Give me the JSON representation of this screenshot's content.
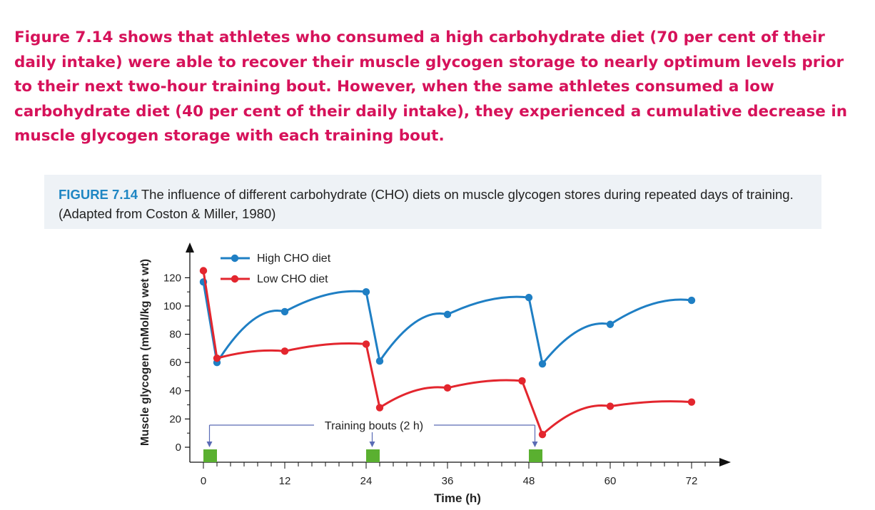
{
  "intro_text": "Figure 7.14 shows that athletes who consumed a high carbohydrate diet (70 per cent of their daily intake) were able to recover their muscle glycogen storage to nearly optimum levels prior to their next two-hour training bout. However, when the same athletes consumed a low carbohydrate diet (40 per cent of their daily intake), they experienced a cumulative decrease in muscle glycogen storage with each training bout.",
  "caption": {
    "label": "FIGURE 7.14",
    "text": " The influence of different carbohydrate (CHO) diets on muscle glycogen stores during repeated days of training. (Adapted from Coston & Miller, 1980)"
  },
  "colors": {
    "intro": "#d6125a",
    "caption_label": "#1f86c3",
    "high_cho": "#1f7fc4",
    "low_cho": "#e3262e",
    "training_bar": "#5ab030",
    "annotation_line": "#5a6bb5"
  },
  "chart_data": {
    "type": "line",
    "xlabel": "Time (h)",
    "ylabel": "Muscle glycogen (mMol/kg wet wt)",
    "xlim": [
      0,
      75
    ],
    "ylim": [
      0,
      130
    ],
    "xticks": [
      0,
      12,
      24,
      36,
      48,
      60,
      72
    ],
    "yticks": [
      0,
      20,
      40,
      60,
      80,
      100,
      120
    ],
    "legend_position": "top-left",
    "series": [
      {
        "name": "High CHO diet",
        "color": "#1f7fc4",
        "points": [
          [
            0,
            117
          ],
          [
            2,
            60
          ],
          [
            12,
            96
          ],
          [
            24,
            110
          ],
          [
            26,
            61
          ],
          [
            36,
            94
          ],
          [
            48,
            106
          ],
          [
            50,
            59
          ],
          [
            60,
            87
          ],
          [
            72,
            104
          ]
        ]
      },
      {
        "name": "Low CHO diet",
        "color": "#e3262e",
        "points": [
          [
            0,
            125
          ],
          [
            2,
            63
          ],
          [
            12,
            68
          ],
          [
            24,
            73
          ],
          [
            26,
            28
          ],
          [
            36,
            42
          ],
          [
            47,
            47
          ],
          [
            50,
            9
          ],
          [
            60,
            29
          ],
          [
            72,
            32
          ]
        ]
      }
    ],
    "training_bouts": [
      [
        0,
        2
      ],
      [
        24,
        26
      ],
      [
        48,
        50
      ]
    ],
    "annotation": "Training bouts (2 h)"
  }
}
